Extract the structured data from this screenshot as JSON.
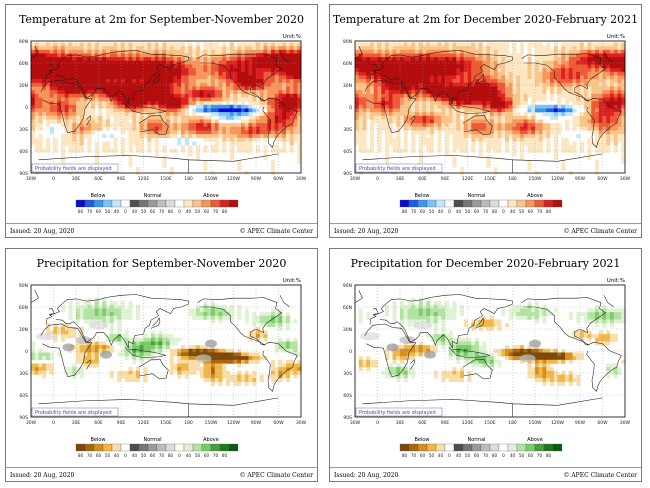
{
  "panels": [
    {
      "title": "Temperature at 2m for September-November 2020",
      "unit": "Unit:%",
      "variable": "temperature",
      "note": "Probability fields are displayed",
      "issued": "Issued: 20 Aug, 2020",
      "credit": "© APEC Climate Center",
      "legend": {
        "below": "Below",
        "normal": "Normal",
        "above": "Above",
        "below_ticks": [
          "80",
          "70",
          "60",
          "50",
          "40"
        ],
        "normal_ticks": [
          "0",
          "40",
          "50",
          "60",
          "70",
          "80"
        ],
        "above_ticks": [
          "0",
          "40",
          "50",
          "60",
          "70",
          "80"
        ],
        "colors": [
          "#0a0ad2",
          "#1c5ce6",
          "#3c96f0",
          "#7cc4f8",
          "#c4e6fb",
          "#ffffff",
          "#4e4e4e",
          "#767676",
          "#9a9a9a",
          "#bcbcbc",
          "#dcdcdc",
          "#ffffff",
          "#fde6c2",
          "#fbc58a",
          "#f7955c",
          "#ef5a37",
          "#dc2020",
          "#b30d0d"
        ]
      },
      "lat_labels": [
        "90N",
        "60N",
        "30N",
        "0",
        "30S",
        "60S",
        "90S"
      ],
      "lon_labels": [
        "30W",
        "0",
        "30E",
        "60E",
        "90E",
        "120E",
        "150E",
        "180",
        "150W",
        "120W",
        "90W",
        "60W",
        "30W"
      ]
    },
    {
      "title": "Temperature at 2m for December 2020-February 2021",
      "unit": "Unit:%",
      "variable": "temperature",
      "note": "Probability fields are displayed",
      "issued": "Issued: 20 Aug, 2020",
      "credit": "© APEC Climate Center",
      "legend": {
        "below": "Below",
        "normal": "Normal",
        "above": "Above",
        "below_ticks": [
          "80",
          "70",
          "60",
          "50",
          "40"
        ],
        "normal_ticks": [
          "0",
          "40",
          "50",
          "60",
          "70",
          "80"
        ],
        "above_ticks": [
          "0",
          "40",
          "50",
          "60",
          "70",
          "80"
        ],
        "colors": [
          "#0a0ad2",
          "#1c5ce6",
          "#3c96f0",
          "#7cc4f8",
          "#c4e6fb",
          "#ffffff",
          "#4e4e4e",
          "#767676",
          "#9a9a9a",
          "#bcbcbc",
          "#dcdcdc",
          "#ffffff",
          "#fde6c2",
          "#fbc58a",
          "#f7955c",
          "#ef5a37",
          "#dc2020",
          "#b30d0d"
        ]
      },
      "lat_labels": [
        "90N",
        "60N",
        "30N",
        "0",
        "30S",
        "60S",
        "90S"
      ],
      "lon_labels": [
        "30W",
        "0",
        "30E",
        "60E",
        "90E",
        "120E",
        "150E",
        "180",
        "150W",
        "120W",
        "90W",
        "60W",
        "30W"
      ]
    },
    {
      "title": "Precipitation for September-November 2020",
      "unit": "Unit:%",
      "variable": "precipitation",
      "note": "Probability fields are displayed",
      "issued": "Issued: 20 Aug, 2020",
      "credit": "© APEC Climate Center",
      "legend": {
        "below": "Below",
        "normal": "Normal",
        "above": "Above",
        "below_ticks": [
          "80",
          "70",
          "60",
          "50",
          "40"
        ],
        "normal_ticks": [
          "0",
          "40",
          "50",
          "60",
          "70",
          "80"
        ],
        "above_ticks": [
          "0",
          "40",
          "50",
          "60",
          "70",
          "80"
        ],
        "colors": [
          "#7a4a0a",
          "#a8670f",
          "#d68f1f",
          "#f0b84a",
          "#f9deaa",
          "#ffffff",
          "#4e4e4e",
          "#767676",
          "#9a9a9a",
          "#bcbcbc",
          "#dcdcdc",
          "#ffffff",
          "#dff3d4",
          "#b2e3a0",
          "#7ccb6a",
          "#45a23a",
          "#1f7a1f",
          "#0b5a12"
        ]
      },
      "lat_labels": [
        "90N",
        "60N",
        "30N",
        "0",
        "30S",
        "60S",
        "90S"
      ],
      "lon_labels": [
        "30W",
        "0",
        "30E",
        "60E",
        "90E",
        "120E",
        "150E",
        "180",
        "150W",
        "120W",
        "90W",
        "60W",
        "30W"
      ]
    },
    {
      "title": "Precipitation for December 2020-February 2021",
      "unit": "Unit:%",
      "variable": "precipitation",
      "note": "Probability fields are displayed",
      "issued": "Issued: 20 Aug, 2020",
      "credit": "© APEC Climate Center",
      "legend": {
        "below": "Below",
        "normal": "Normal",
        "above": "Above",
        "below_ticks": [
          "80",
          "70",
          "60",
          "50",
          "40"
        ],
        "normal_ticks": [
          "0",
          "40",
          "50",
          "60",
          "70",
          "80"
        ],
        "above_ticks": [
          "0",
          "40",
          "50",
          "60",
          "70",
          "80"
        ],
        "colors": [
          "#7a4a0a",
          "#a8670f",
          "#d68f1f",
          "#f0b84a",
          "#f9deaa",
          "#ffffff",
          "#4e4e4e",
          "#767676",
          "#9a9a9a",
          "#bcbcbc",
          "#dcdcdc",
          "#ffffff",
          "#dff3d4",
          "#b2e3a0",
          "#7ccb6a",
          "#45a23a",
          "#1f7a1f",
          "#0b5a12"
        ]
      },
      "lat_labels": [
        "90N",
        "60N",
        "30N",
        "0",
        "30S",
        "60S",
        "90S"
      ],
      "lon_labels": [
        "30W",
        "0",
        "30E",
        "60E",
        "90E",
        "120E",
        "150E",
        "180",
        "150W",
        "120W",
        "90W",
        "60W",
        "30W"
      ]
    }
  ]
}
